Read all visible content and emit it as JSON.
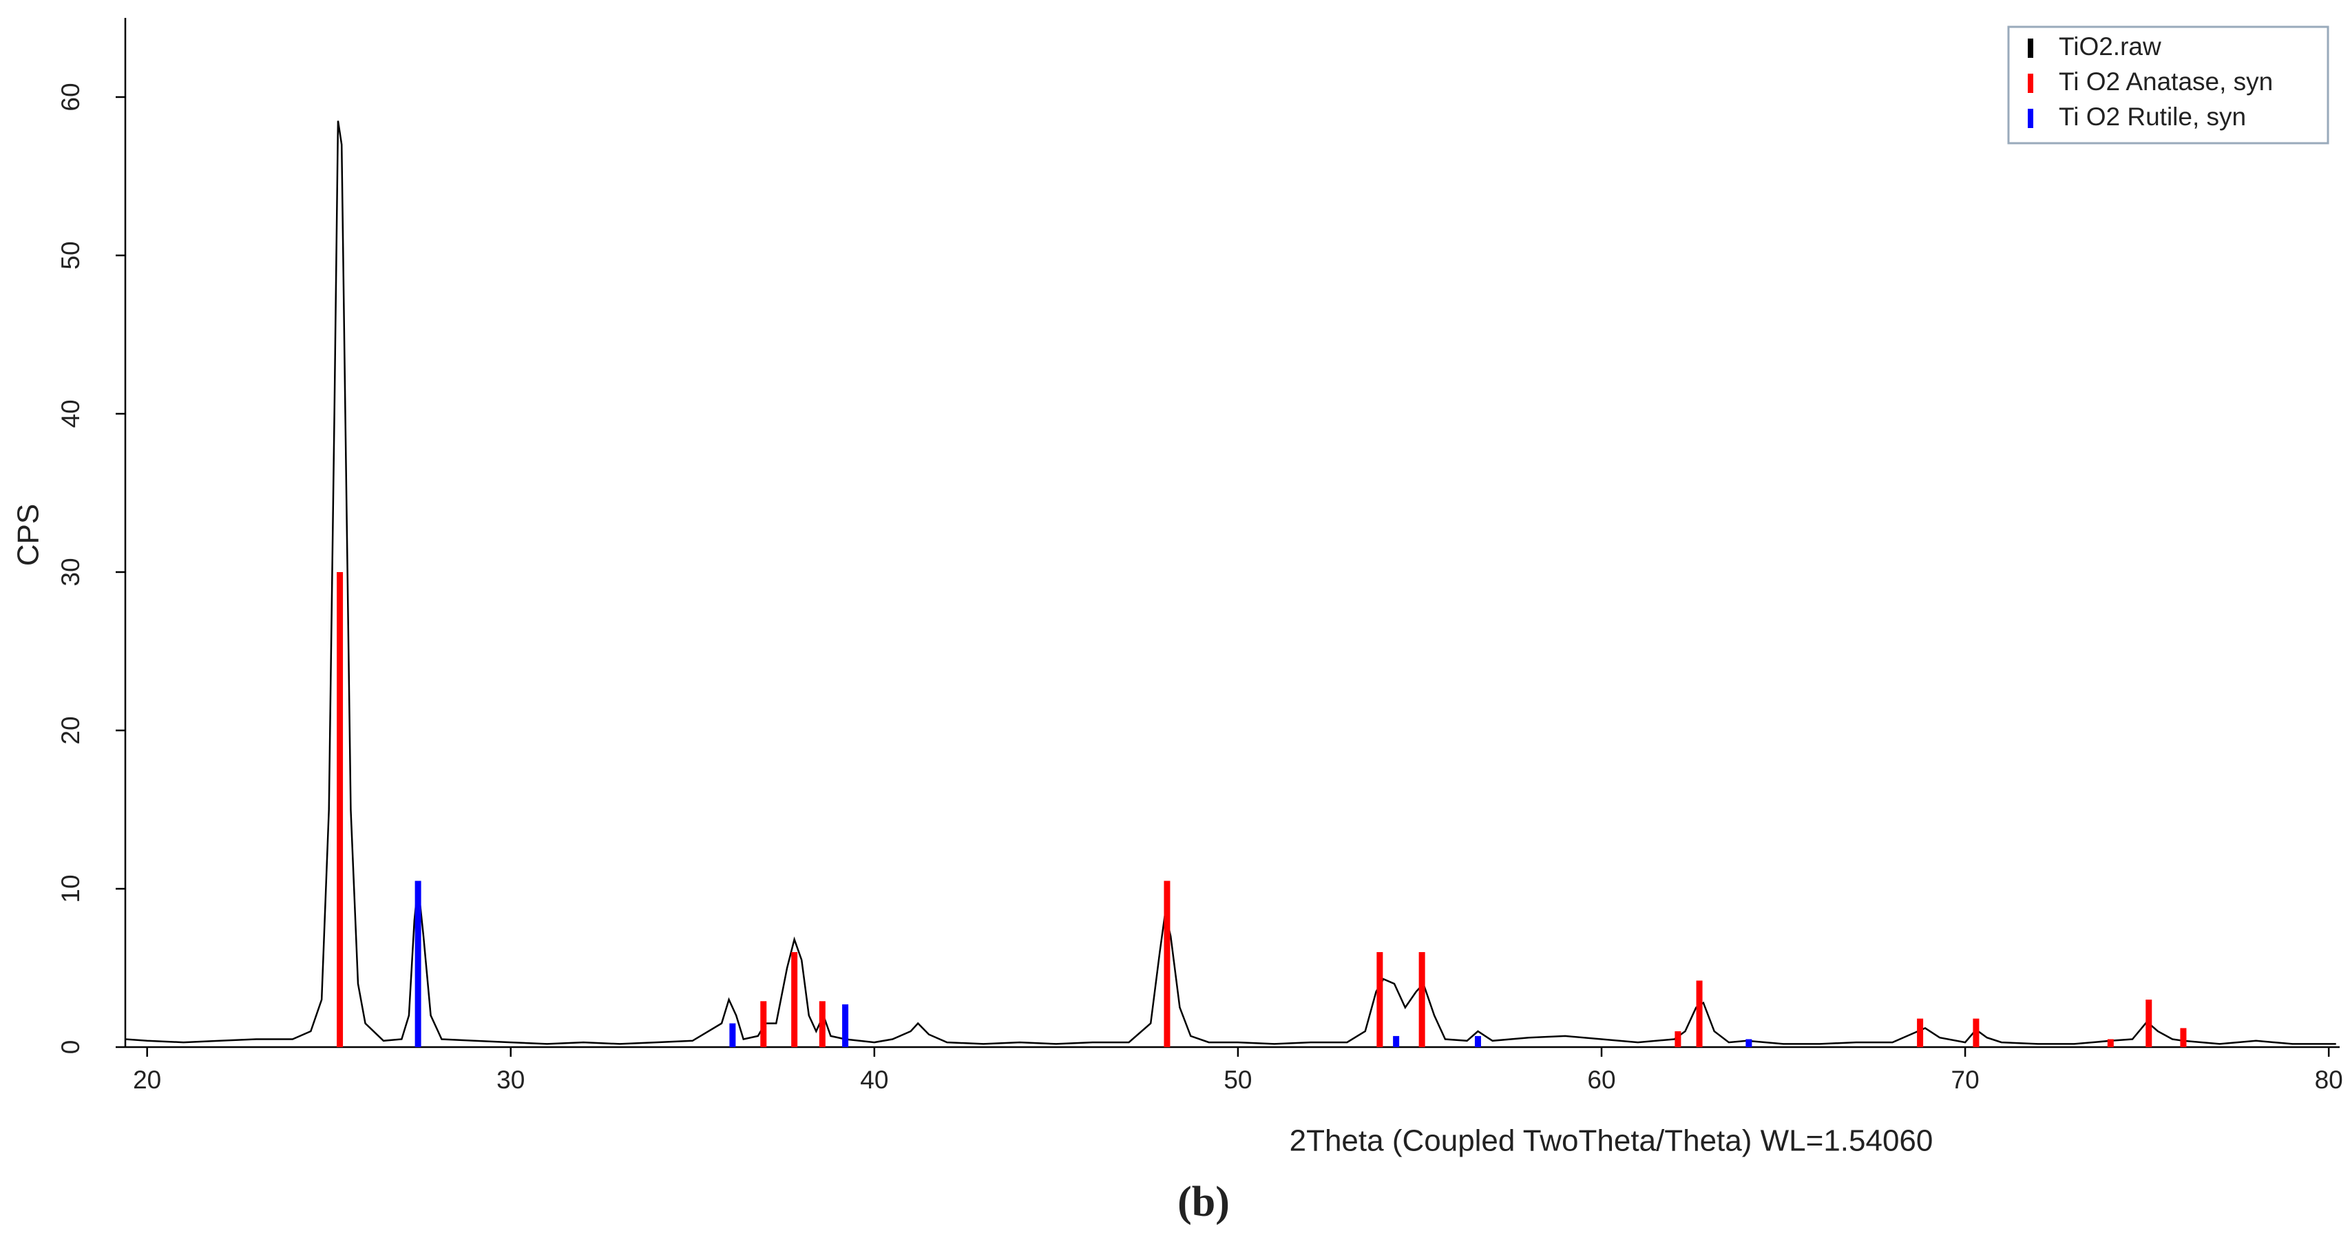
{
  "chart_data": {
    "type": "line",
    "xlabel": "2Theta (Coupled TwoTheta/Theta) WL=1.54060",
    "ylabel": "CPS",
    "caption": "(b)",
    "xlim": [
      19.4,
      80.3
    ],
    "ylim": [
      0,
      65
    ],
    "xticks": [
      20,
      30,
      40,
      50,
      60,
      70,
      80
    ],
    "yticks": [
      0,
      10,
      20,
      30,
      40,
      50,
      60
    ],
    "legend": "upper right",
    "series": [
      {
        "name": "TiO2.raw",
        "color": "#000000",
        "type": "line",
        "x": [
          19.4,
          20,
          21,
          22,
          23,
          24,
          24.5,
          24.8,
          25.0,
          25.15,
          25.25,
          25.35,
          25.45,
          25.6,
          25.8,
          26.0,
          26.5,
          27.0,
          27.2,
          27.35,
          27.45,
          27.6,
          27.8,
          28.1,
          29,
          30,
          31,
          32,
          33,
          34,
          35,
          35.8,
          36.0,
          36.2,
          36.4,
          36.8,
          37.0,
          37.3,
          37.6,
          37.8,
          38.0,
          38.2,
          38.4,
          38.6,
          38.8,
          39.2,
          40,
          40.5,
          41.0,
          41.2,
          41.5,
          42,
          43,
          44,
          45,
          46,
          47,
          47.6,
          47.85,
          48.0,
          48.15,
          48.4,
          48.7,
          49.2,
          50,
          51,
          52,
          53,
          53.5,
          53.8,
          54.0,
          54.3,
          54.6,
          54.9,
          55.1,
          55.4,
          55.7,
          56.3,
          56.6,
          57,
          58,
          59,
          60,
          61,
          62,
          62.3,
          62.6,
          62.8,
          63.1,
          63.5,
          64,
          65,
          66,
          67,
          68,
          68.5,
          68.9,
          69.3,
          70,
          70.3,
          70.6,
          71,
          72,
          73,
          74,
          74.6,
          75.0,
          75.3,
          75.7,
          76,
          77,
          78,
          79,
          80.2
        ],
        "values": [
          0.5,
          0.4,
          0.3,
          0.4,
          0.5,
          0.5,
          1.0,
          3,
          15,
          40,
          58.5,
          57,
          40,
          15,
          4,
          1.5,
          0.4,
          0.5,
          2,
          8,
          10.3,
          7,
          2,
          0.5,
          0.4,
          0.3,
          0.2,
          0.3,
          0.2,
          0.3,
          0.4,
          1.5,
          3.0,
          2,
          0.5,
          0.7,
          1.5,
          1.5,
          5,
          6.8,
          5.5,
          2,
          1,
          2,
          0.7,
          0.5,
          0.3,
          0.5,
          1.0,
          1.5,
          0.8,
          0.3,
          0.2,
          0.3,
          0.2,
          0.3,
          0.3,
          1.5,
          6,
          8.5,
          7,
          2.5,
          0.7,
          0.3,
          0.3,
          0.2,
          0.3,
          0.3,
          1,
          3.5,
          4.3,
          4,
          2.5,
          3.5,
          4,
          2,
          0.5,
          0.4,
          1,
          0.4,
          0.6,
          0.7,
          0.5,
          0.3,
          0.5,
          1,
          2.5,
          2.8,
          1,
          0.3,
          0.4,
          0.2,
          0.2,
          0.3,
          0.3,
          0.8,
          1.2,
          0.6,
          0.3,
          1.1,
          0.6,
          0.3,
          0.2,
          0.2,
          0.4,
          0.5,
          1.6,
          1.0,
          0.5,
          0.4,
          0.2,
          0.4,
          0.2,
          0.2
        ]
      },
      {
        "name": "Ti O2 Anatase, syn",
        "color": "#ff0000",
        "type": "stick",
        "x": [
          25.3,
          36.95,
          37.8,
          38.57,
          48.05,
          53.9,
          55.06,
          62.1,
          62.69,
          68.76,
          70.3,
          74.0,
          75.05,
          76.0
        ],
        "values": [
          30,
          2.9,
          6,
          2.9,
          10.5,
          6,
          6,
          1.0,
          4.2,
          1.8,
          1.8,
          0.5,
          3,
          1.2
        ]
      },
      {
        "name": "Ti O2 Rutile, syn",
        "color": "#0000ff",
        "type": "stick",
        "x": [
          27.45,
          36.1,
          39.2,
          54.35,
          56.6,
          64.05
        ],
        "values": [
          10.5,
          1.5,
          2.7,
          0.7,
          0.7,
          0.5
        ]
      }
    ]
  }
}
